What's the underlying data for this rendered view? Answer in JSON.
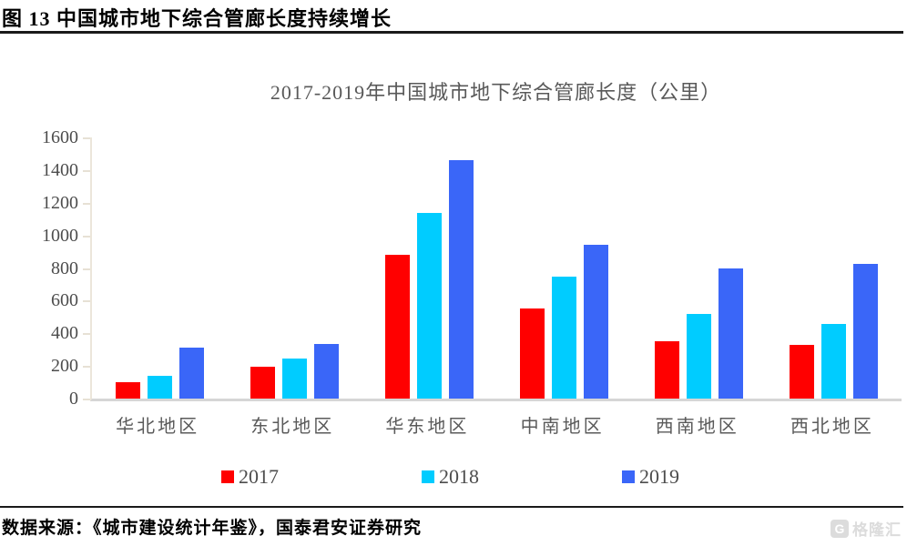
{
  "page": {
    "figure_title": "图 13  中国城市地下综合管廊长度持续增长",
    "source_text": "数据来源：《城市建设统计年鉴》，国泰君安证券研究",
    "watermark": "格隆汇",
    "watermark_icon": "G"
  },
  "chart_data": {
    "type": "bar",
    "title": "2017-2019年中国城市地下综合管廊长度（公里）",
    "categories": [
      "华北地区",
      "东北地区",
      "华东地区",
      "中南地区",
      "西南地区",
      "西北地区"
    ],
    "series": [
      {
        "name": "2017",
        "color": "#ff0000",
        "values": [
          100,
          195,
          880,
          550,
          350,
          330
        ]
      },
      {
        "name": "2018",
        "color": "#00ccff",
        "values": [
          140,
          245,
          1140,
          745,
          520,
          455
        ]
      },
      {
        "name": "2019",
        "color": "#3a66f8",
        "values": [
          315,
          335,
          1460,
          940,
          800,
          825
        ]
      }
    ],
    "xlabel": "",
    "ylabel": "",
    "ylim": [
      0,
      1600
    ],
    "ytick_step": 200,
    "yticks": [
      0,
      200,
      400,
      600,
      800,
      1000,
      1200,
      1400,
      1600
    ],
    "grid": false,
    "legend_position": "bottom"
  }
}
